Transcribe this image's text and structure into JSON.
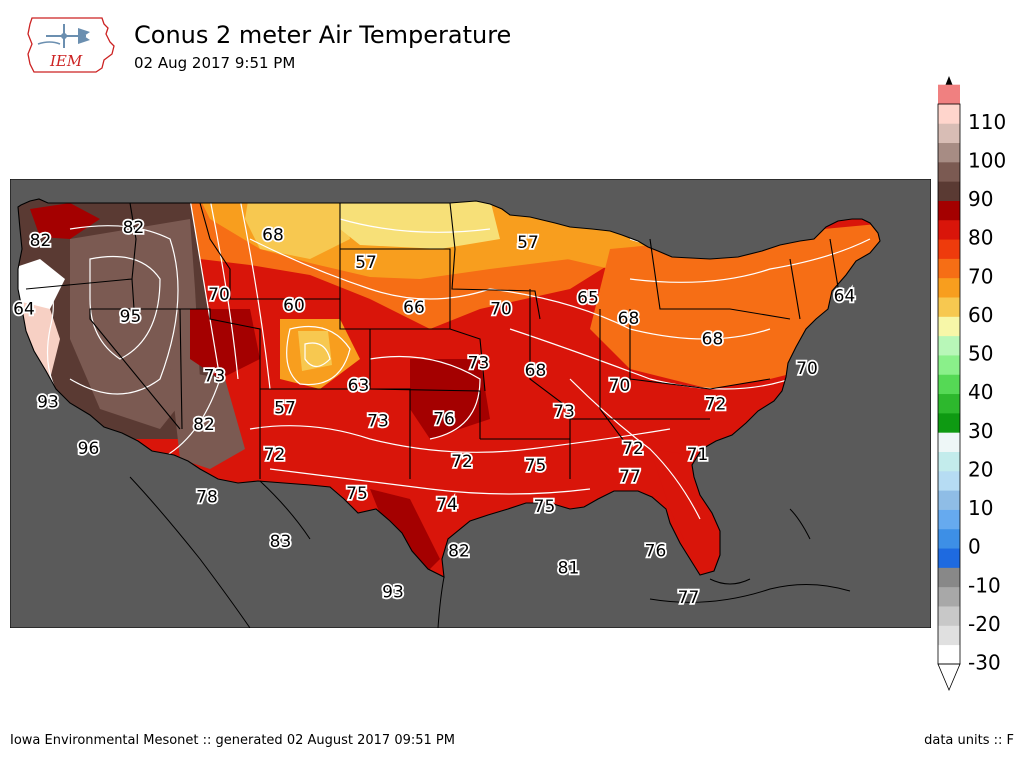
{
  "header": {
    "title": "Conus 2 meter Air Temperature",
    "subtitle": "02 Aug 2017 9:51 PM",
    "logo_text": "IEM"
  },
  "footer": {
    "left": "Iowa Environmental Mesonet :: generated 02 August 2017 09:51 PM",
    "right": "data units :: F"
  },
  "colorbar": {
    "ticks": [
      110,
      100,
      90,
      80,
      70,
      60,
      50,
      40,
      30,
      20,
      10,
      0,
      -10,
      -20,
      -30
    ],
    "range": [
      -30,
      115
    ],
    "colors": {
      "-30": "#ffffff",
      "-25": "#e0e0e0",
      "-20": "#c8c8c8",
      "-15": "#a8a8a8",
      "-10": "#888888",
      "-5": "#1e6ae0",
      "0": "#3d8fe6",
      "5": "#66aaef",
      "10": "#8fbde6",
      "15": "#b6dcf3",
      "20": "#c3ecec",
      "25": "#eef7f7",
      "30": "#0e9a12",
      "35": "#2db82d",
      "40": "#55d955",
      "45": "#8af08a",
      "50": "#b8f7b8",
      "55": "#f7f7a8",
      "60": "#f7c850",
      "65": "#f89e1e",
      "70": "#f66e15",
      "75": "#ee3b0c",
      "80": "#d9150a",
      "85": "#a40000",
      "90": "#5a3a33",
      "95": "#7b5a52",
      "100": "#a78c84",
      "105": "#d8bdb5",
      "110": "#ffd5cc",
      "115": "#f08080"
    }
  },
  "map_labels": [
    {
      "value": "82",
      "lon": -123.5,
      "lat": 47.5
    },
    {
      "value": "82",
      "lon": -117.3,
      "lat": 48.2
    },
    {
      "value": "68",
      "lon": -108.0,
      "lat": 47.8
    },
    {
      "value": "57",
      "lon": -101.8,
      "lat": 46.3
    },
    {
      "value": "57",
      "lon": -91.0,
      "lat": 47.4
    },
    {
      "value": "64",
      "lon": -124.6,
      "lat": 43.8
    },
    {
      "value": "95",
      "lon": -117.5,
      "lat": 43.4
    },
    {
      "value": "70",
      "lon": -111.6,
      "lat": 44.6
    },
    {
      "value": "60",
      "lon": -106.6,
      "lat": 44.0
    },
    {
      "value": "66",
      "lon": -98.6,
      "lat": 43.9
    },
    {
      "value": "70",
      "lon": -92.8,
      "lat": 43.8
    },
    {
      "value": "65",
      "lon": -87.0,
      "lat": 44.4
    },
    {
      "value": "68",
      "lon": -84.3,
      "lat": 43.3
    },
    {
      "value": "64",
      "lon": -69.9,
      "lat": 44.5
    },
    {
      "value": "68",
      "lon": -78.7,
      "lat": 42.2
    },
    {
      "value": "70",
      "lon": -72.4,
      "lat": 40.6
    },
    {
      "value": "73",
      "lon": -111.9,
      "lat": 40.2
    },
    {
      "value": "63",
      "lon": -102.3,
      "lat": 39.7
    },
    {
      "value": "73",
      "lon": -94.3,
      "lat": 40.9
    },
    {
      "value": "68",
      "lon": -90.5,
      "lat": 40.5
    },
    {
      "value": "70",
      "lon": -84.9,
      "lat": 39.7
    },
    {
      "value": "72",
      "lon": -78.5,
      "lat": 38.7
    },
    {
      "value": "93",
      "lon": -123.0,
      "lat": 38.8
    },
    {
      "value": "57",
      "lon": -107.2,
      "lat": 38.5
    },
    {
      "value": "73",
      "lon": -101.0,
      "lat": 37.8
    },
    {
      "value": "76",
      "lon": -96.6,
      "lat": 37.9
    },
    {
      "value": "73",
      "lon": -88.6,
      "lat": 38.3
    },
    {
      "value": "82",
      "lon": -112.6,
      "lat": 37.6
    },
    {
      "value": "96",
      "lon": -120.3,
      "lat": 36.3
    },
    {
      "value": "72",
      "lon": -107.9,
      "lat": 36.0
    },
    {
      "value": "72",
      "lon": -95.4,
      "lat": 35.6
    },
    {
      "value": "75",
      "lon": -90.5,
      "lat": 35.4
    },
    {
      "value": "72",
      "lon": -84.0,
      "lat": 36.3
    },
    {
      "value": "71",
      "lon": -79.7,
      "lat": 36.0
    },
    {
      "value": "77",
      "lon": -84.2,
      "lat": 34.8
    },
    {
      "value": "78",
      "lon": -112.4,
      "lat": 33.7
    },
    {
      "value": "75",
      "lon": -102.4,
      "lat": 33.9
    },
    {
      "value": "74",
      "lon": -96.4,
      "lat": 33.3
    },
    {
      "value": "75",
      "lon": -89.9,
      "lat": 33.2
    },
    {
      "value": "83",
      "lon": -107.5,
      "lat": 31.3
    },
    {
      "value": "82",
      "lon": -95.6,
      "lat": 30.8
    },
    {
      "value": "81",
      "lon": -88.3,
      "lat": 29.9
    },
    {
      "value": "76",
      "lon": -82.5,
      "lat": 30.8
    },
    {
      "value": "77",
      "lon": -80.3,
      "lat": 28.3
    },
    {
      "value": "93",
      "lon": -100.0,
      "lat": 28.6
    }
  ]
}
